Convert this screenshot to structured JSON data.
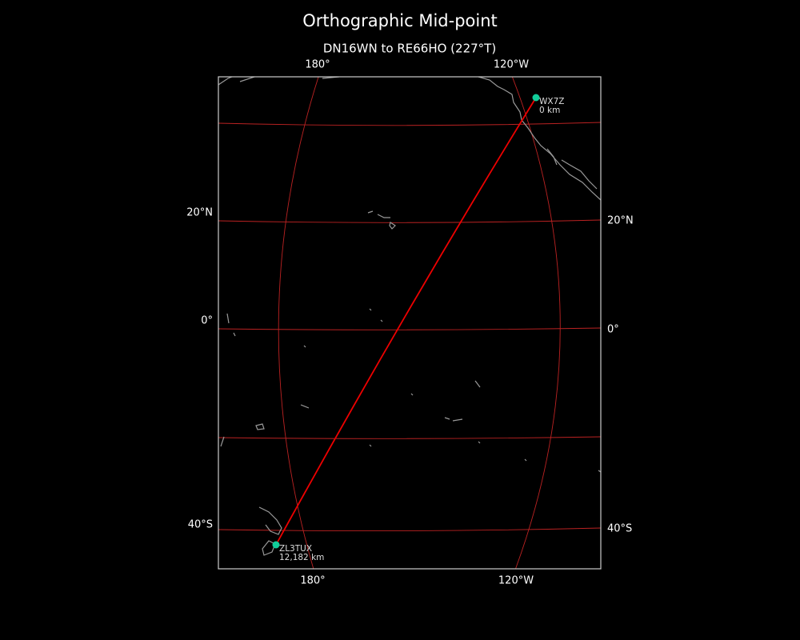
{
  "title": "Orthographic Mid-point",
  "subtitle": "DN16WN to RE66HO (227°T)",
  "graticule_labels": {
    "top": [
      "180°",
      "120°W"
    ],
    "bottom": [
      "180°",
      "120°W"
    ],
    "left": [
      "20°N",
      "0°",
      "40°S"
    ],
    "right": [
      "20°N",
      "0°",
      "40°S"
    ]
  },
  "stations": [
    {
      "call": "WX7Z",
      "distance": "0 km"
    },
    {
      "call": "ZL3TUX",
      "distance": "12,182 km"
    }
  ]
}
